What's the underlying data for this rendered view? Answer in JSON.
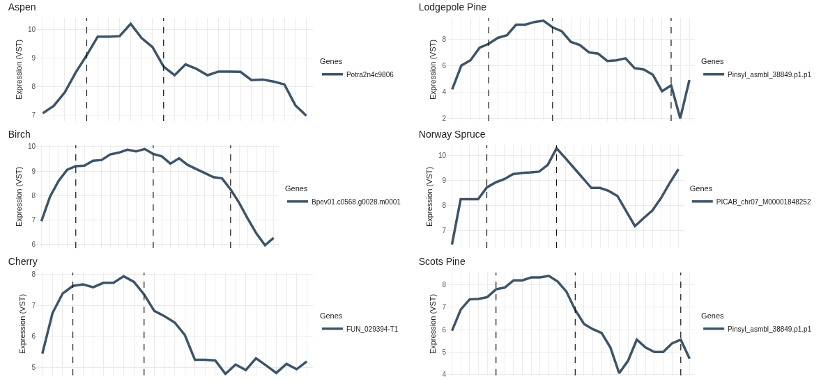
{
  "chart_data": [
    {
      "type": "line",
      "title": "Aspen",
      "ylabel": "Expression (VST)",
      "legend_title": "Genes",
      "legend": "right",
      "grid": true,
      "tick_labels": "y",
      "line_style": "solid",
      "marker": "none",
      "categories": [
        null,
        null,
        null,
        null,
        null,
        null,
        null,
        null,
        null,
        null,
        null,
        null,
        null,
        null,
        null,
        null,
        null,
        null,
        null,
        null,
        null,
        null,
        null,
        null,
        null
      ],
      "ylim": [
        6.8,
        10.4
      ],
      "yticks": [
        7,
        8,
        9,
        10
      ],
      "series": [
        {
          "name": "Potra2n4c9806",
          "color": "#3d5468",
          "values": [
            7.07,
            7.33,
            7.8,
            8.5,
            9.1,
            9.75,
            9.75,
            9.77,
            10.2,
            9.7,
            9.38,
            8.7,
            8.4,
            8.78,
            8.62,
            8.4,
            8.53,
            8.53,
            8.52,
            8.23,
            8.25,
            8.18,
            8.08,
            7.35,
            6.98
          ]
        }
      ]
    },
    {
      "type": "line",
      "title": "Lodgepole Pine",
      "ylabel": "Expression (VST)",
      "legend_title": "Genes",
      "legend": "right",
      "grid": true,
      "tick_labels": "y",
      "line_style": "solid",
      "marker": "none",
      "categories": [
        null,
        null,
        null,
        null,
        null,
        null,
        null,
        null,
        null,
        null,
        null,
        null,
        null,
        null,
        null,
        null,
        null,
        null,
        null,
        null,
        null,
        null,
        null,
        null,
        null,
        null,
        null
      ],
      "ylim": [
        1.8,
        9.6
      ],
      "yticks": [
        2,
        4,
        6,
        8
      ],
      "series": [
        {
          "name": "Pinsyl_asmbl_38849.p1.p1",
          "color": "#3d5468",
          "values": [
            4.2,
            6.0,
            6.4,
            7.35,
            7.65,
            8.1,
            8.3,
            9.1,
            9.1,
            9.3,
            9.4,
            8.9,
            8.6,
            7.8,
            7.55,
            7.0,
            6.9,
            6.35,
            6.4,
            6.55,
            5.8,
            5.7,
            5.3,
            4.05,
            4.5,
            2.0,
            4.9
          ]
        }
      ]
    },
    {
      "type": "line",
      "title": "Birch",
      "ylabel": "Expression (VST)",
      "legend_title": "Genes",
      "legend": "right",
      "grid": true,
      "tick_labels": "y",
      "line_style": "solid",
      "marker": "none",
      "categories": [
        null,
        null,
        null,
        null,
        null,
        null,
        null,
        null,
        null,
        null,
        null,
        null,
        null,
        null,
        null,
        null,
        null,
        null,
        null,
        null,
        null,
        null,
        null,
        null,
        null,
        null,
        null,
        null
      ],
      "ylim": [
        5.85,
        10.05
      ],
      "yticks": [
        6,
        7,
        8,
        9,
        10
      ],
      "series": [
        {
          "name": "Bpev01.c0568.g0028.m0001",
          "color": "#3d5468",
          "values": [
            6.95,
            7.95,
            8.6,
            9.05,
            9.2,
            9.22,
            9.42,
            9.45,
            9.68,
            9.75,
            9.87,
            9.8,
            9.9,
            9.7,
            9.6,
            9.3,
            9.52,
            9.25,
            9.08,
            8.92,
            8.75,
            8.7,
            8.25,
            7.7,
            7.05,
            6.45,
            5.97,
            6.27
          ]
        }
      ]
    },
    {
      "type": "line",
      "title": "Norway Spruce",
      "ylabel": "Expression (VST)",
      "legend_title": "Genes",
      "legend": "right",
      "grid": true,
      "tick_labels": "y",
      "line_style": "solid",
      "marker": "none",
      "categories": [
        null,
        null,
        null,
        null,
        null,
        null,
        null,
        null,
        null,
        null,
        null,
        null,
        null,
        null,
        null,
        null,
        null,
        null,
        null,
        null,
        null,
        null,
        null,
        null,
        null,
        null,
        null
      ],
      "ylim": [
        6.3,
        10.4
      ],
      "yticks": [
        7,
        8,
        9,
        10
      ],
      "series": [
        {
          "name": "PICAB_chr07_M00001848252",
          "color": "#3d5468",
          "values": [
            6.45,
            8.25,
            8.25,
            8.25,
            8.72,
            8.92,
            9.05,
            9.25,
            9.3,
            9.32,
            9.35,
            9.62,
            10.28,
            9.9,
            9.5,
            9.1,
            8.7,
            8.7,
            8.58,
            8.38,
            7.78,
            7.18,
            7.5,
            7.8,
            8.3,
            8.9,
            9.45
          ]
        }
      ]
    },
    {
      "type": "line",
      "title": "Cherry",
      "ylabel": "Expression (VST)",
      "legend_title": "Genes",
      "legend": "right",
      "grid": true,
      "tick_labels": "y",
      "line_style": "solid",
      "marker": "none",
      "categories": [
        null,
        null,
        null,
        null,
        null,
        null,
        null,
        null,
        null,
        null,
        null,
        null,
        null,
        null,
        null,
        null,
        null,
        null,
        null,
        null,
        null,
        null,
        null,
        null,
        null,
        null,
        null
      ],
      "ylim": [
        4.75,
        8.05
      ],
      "yticks": [
        5,
        6,
        7,
        8
      ],
      "series": [
        {
          "name": "FUN_029394-T1",
          "color": "#3d5468",
          "values": [
            5.45,
            6.75,
            7.38,
            7.62,
            7.67,
            7.58,
            7.72,
            7.72,
            7.93,
            7.75,
            7.35,
            6.82,
            6.65,
            6.45,
            6.05,
            5.25,
            5.25,
            5.23,
            4.8,
            5.1,
            4.92,
            5.3,
            5.07,
            4.83,
            5.12,
            4.95,
            5.2
          ]
        }
      ]
    },
    {
      "type": "line",
      "title": "Scots Pine",
      "ylabel": "Expression (VST)",
      "legend_title": "Genes",
      "legend": "right",
      "grid": true,
      "tick_labels": "y",
      "line_style": "solid",
      "marker": "none",
      "categories": [
        null,
        null,
        null,
        null,
        null,
        null,
        null,
        null,
        null,
        null,
        null,
        null,
        null,
        null,
        null,
        null,
        null,
        null,
        null,
        null,
        null,
        null,
        null,
        null,
        null,
        null,
        null,
        null
      ],
      "ylim": [
        3.95,
        8.55
      ],
      "yticks": [
        4,
        5,
        6,
        7,
        8
      ],
      "series": [
        {
          "name": "Pinsyl_asmbl_38849.p1.p1",
          "color": "#3d5468",
          "values": [
            5.95,
            6.9,
            7.35,
            7.37,
            7.45,
            7.8,
            7.88,
            8.2,
            8.2,
            8.33,
            8.33,
            8.4,
            8.15,
            7.7,
            6.88,
            6.25,
            6.02,
            5.85,
            5.2,
            4.05,
            4.6,
            5.55,
            5.2,
            5.0,
            5.0,
            5.38,
            5.55,
            4.7
          ]
        }
      ]
    }
  ]
}
